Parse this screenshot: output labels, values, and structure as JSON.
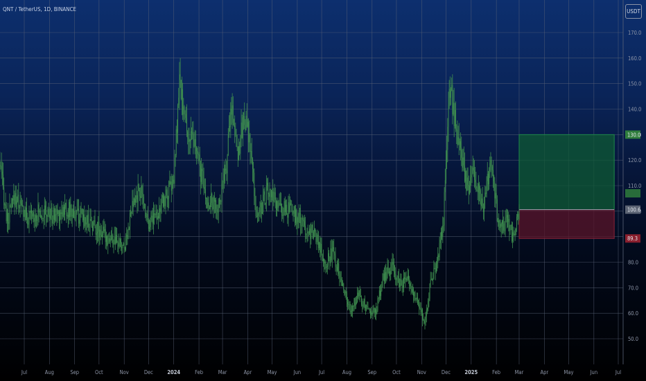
{
  "header": {
    "symbol_label": "QNT / TetherUS, 1D, BINANCE",
    "currency_button": "USDT"
  },
  "colors": {
    "grid": "#5b6478",
    "tick_text": "#8e96a8",
    "candle": "#3f8f4f",
    "profit_zone": "#0f5a34",
    "profit_border": "#1f8a4a",
    "loss_zone": "#5a1428",
    "loss_border": "#8a2438",
    "tag_green": "#2f7d3c",
    "tag_red": "#8a1f2e",
    "tag_gray": "#5c6474"
  },
  "chart_data": {
    "type": "candlestick",
    "symbol": "QNT/USDT",
    "interval": "1D",
    "exchange": "BINANCE",
    "ylim": [
      45,
      175
    ],
    "yticks": [
      "50.0",
      "60.0",
      "70.0",
      "80.0",
      "90.0",
      "100.0",
      "110.0",
      "120.0",
      "130.0",
      "140.0",
      "150.0",
      "160.0",
      "170.0"
    ],
    "xticks": [
      {
        "label": "Jul",
        "date": "2023-07-01"
      },
      {
        "label": "Aug",
        "date": "2023-08-01"
      },
      {
        "label": "Sep",
        "date": "2023-09-01"
      },
      {
        "label": "Oct",
        "date": "2023-10-01"
      },
      {
        "label": "Nov",
        "date": "2023-11-01"
      },
      {
        "label": "Dec",
        "date": "2023-12-01"
      },
      {
        "label": "2024",
        "date": "2024-01-01",
        "bold": true
      },
      {
        "label": "Feb",
        "date": "2024-02-01"
      },
      {
        "label": "Mar",
        "date": "2024-03-01"
      },
      {
        "label": "Apr",
        "date": "2024-04-01"
      },
      {
        "label": "May",
        "date": "2024-05-01"
      },
      {
        "label": "Jun",
        "date": "2024-06-01"
      },
      {
        "label": "Jul",
        "date": "2024-07-01"
      },
      {
        "label": "Aug",
        "date": "2024-08-01"
      },
      {
        "label": "Sep",
        "date": "2024-09-01"
      },
      {
        "label": "Oct",
        "date": "2024-10-01"
      },
      {
        "label": "Nov",
        "date": "2024-11-01"
      },
      {
        "label": "Dec",
        "date": "2024-12-01"
      },
      {
        "label": "2025",
        "date": "2025-01-01",
        "bold": true
      },
      {
        "label": "Feb",
        "date": "2025-02-01"
      },
      {
        "label": "Mar",
        "date": "2025-03-01"
      },
      {
        "label": "Apr",
        "date": "2025-04-01"
      },
      {
        "label": "May",
        "date": "2025-05-01"
      },
      {
        "label": "Jun",
        "date": "2025-06-01"
      },
      {
        "label": "Jul",
        "date": "2025-07-01"
      }
    ],
    "price_path": [
      [
        "2023-06-01",
        118
      ],
      [
        "2023-06-10",
        96
      ],
      [
        "2023-06-20",
        106
      ],
      [
        "2023-07-05",
        97
      ],
      [
        "2023-07-20",
        100
      ],
      [
        "2023-08-05",
        98
      ],
      [
        "2023-08-20",
        101
      ],
      [
        "2023-09-01",
        99
      ],
      [
        "2023-09-20",
        96
      ],
      [
        "2023-10-10",
        90
      ],
      [
        "2023-10-25",
        87
      ],
      [
        "2023-11-01",
        86
      ],
      [
        "2023-11-10",
        100
      ],
      [
        "2023-11-20",
        109
      ],
      [
        "2023-12-01",
        96
      ],
      [
        "2023-12-15",
        101
      ],
      [
        "2024-01-01",
        112
      ],
      [
        "2024-01-08",
        150
      ],
      [
        "2024-01-18",
        130
      ],
      [
        "2024-01-28",
        125
      ],
      [
        "2024-02-10",
        104
      ],
      [
        "2024-02-25",
        102
      ],
      [
        "2024-03-05",
        115
      ],
      [
        "2024-03-12",
        142
      ],
      [
        "2024-03-20",
        123
      ],
      [
        "2024-03-28",
        138
      ],
      [
        "2024-04-05",
        123
      ],
      [
        "2024-04-12",
        97
      ],
      [
        "2024-04-25",
        108
      ],
      [
        "2024-05-10",
        101
      ],
      [
        "2024-05-25",
        100
      ],
      [
        "2024-06-10",
        94
      ],
      [
        "2024-06-25",
        90
      ],
      [
        "2024-07-05",
        80
      ],
      [
        "2024-07-15",
        84
      ],
      [
        "2024-07-25",
        74
      ],
      [
        "2024-08-05",
        60
      ],
      [
        "2024-08-15",
        68
      ],
      [
        "2024-08-25",
        62
      ],
      [
        "2024-09-05",
        60
      ],
      [
        "2024-09-15",
        74
      ],
      [
        "2024-09-25",
        78
      ],
      [
        "2024-10-05",
        72
      ],
      [
        "2024-10-15",
        73
      ],
      [
        "2024-10-25",
        66
      ],
      [
        "2024-11-05",
        57
      ],
      [
        "2024-11-12",
        72
      ],
      [
        "2024-11-20",
        80
      ],
      [
        "2024-11-28",
        97
      ],
      [
        "2024-12-05",
        152
      ],
      [
        "2024-12-12",
        135
      ],
      [
        "2024-12-20",
        120
      ],
      [
        "2024-12-28",
        108
      ],
      [
        "2025-01-05",
        116
      ],
      [
        "2025-01-15",
        100
      ],
      [
        "2025-01-25",
        118
      ],
      [
        "2025-02-05",
        92
      ],
      [
        "2025-02-15",
        97
      ],
      [
        "2025-02-22",
        89
      ],
      [
        "2025-03-01",
        101
      ]
    ],
    "last_date": "2025-03-01",
    "position_tool": {
      "type": "long",
      "start_date": "2025-03-01",
      "end_date": "2025-06-26",
      "entry": 100.6,
      "target": 130.0,
      "stop": 89.3,
      "labels": {
        "target": "130.0",
        "entry": "100.6",
        "stop": "89.3"
      }
    }
  }
}
